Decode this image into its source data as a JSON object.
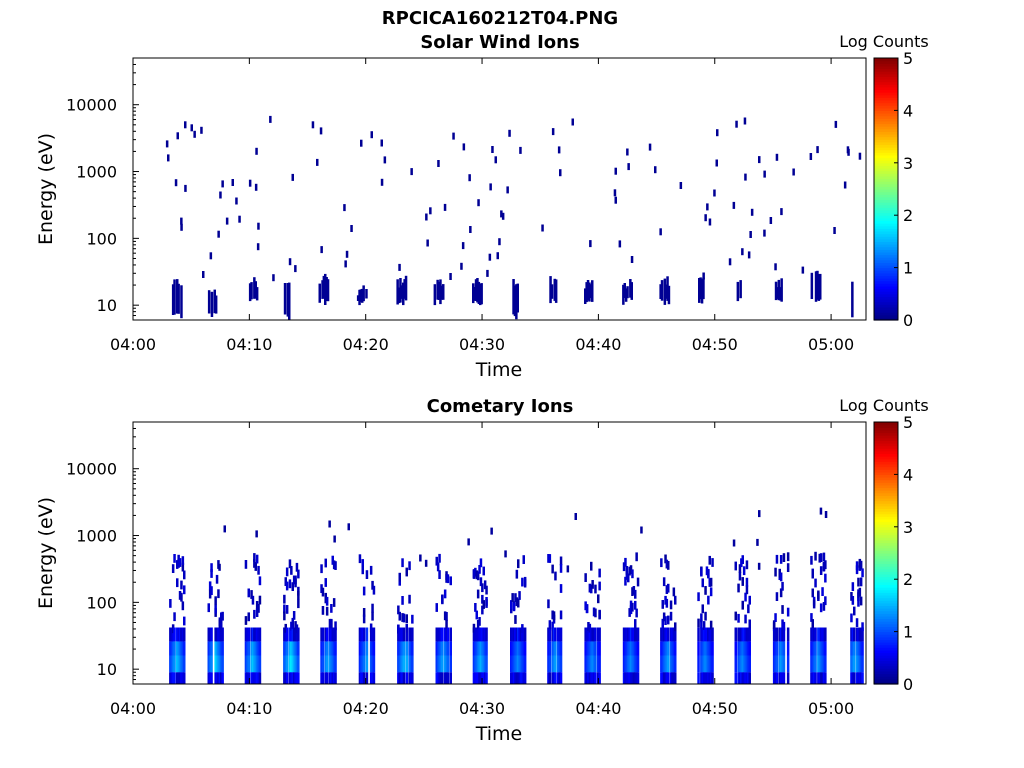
{
  "figure": {
    "title": "RPCICA160212T04.PNG"
  },
  "chart_data": [
    {
      "type": "heatmap",
      "title": "Solar Wind Ions",
      "xlabel": "Time",
      "ylabel": "Energy (eV)",
      "yscale": "log",
      "ylim": [
        6,
        50000
      ],
      "xlim": [
        "04:00",
        "05:03"
      ],
      "x_ticks": [
        "04:00",
        "04:10",
        "04:20",
        "04:30",
        "04:40",
        "04:50",
        "05:00"
      ],
      "y_ticks": [
        "10",
        "100",
        "1000",
        "10000"
      ],
      "colorbar": {
        "label": "Log Counts",
        "range": [
          0,
          5
        ],
        "ticks": [
          "0",
          "1",
          "2",
          "3",
          "4",
          "5"
        ],
        "colormap": "jet"
      },
      "grid": false,
      "description_of_values": "Sparse counts mostly at log count ~0-0.3 (dark blue); low-energy (~6-25 eV) bursts roughly every 3 minutes; scattered single detections 100-10000 eV.",
      "bursts_low_energy": [
        {
          "t": "04:03.7",
          "emin": 6,
          "emax": 25,
          "level": 0.1
        },
        {
          "t": "04:06.8",
          "emin": 6,
          "emax": 16,
          "level": 0.1
        },
        {
          "t": "04:10.2",
          "emin": 10,
          "emax": 25,
          "level": 0.1
        },
        {
          "t": "04:13.2",
          "emin": 6,
          "emax": 25,
          "level": 0.1
        },
        {
          "t": "04:16.3",
          "emin": 10,
          "emax": 30,
          "level": 0.1
        },
        {
          "t": "04:19.6",
          "emin": 10,
          "emax": 18,
          "level": 0.1
        },
        {
          "t": "04:23.0",
          "emin": 10,
          "emax": 25,
          "level": 0.1
        },
        {
          "t": "04:26.2",
          "emin": 10,
          "emax": 25,
          "level": 0.1
        },
        {
          "t": "04:29.5",
          "emin": 10,
          "emax": 25,
          "level": 0.1
        },
        {
          "t": "04:32.6",
          "emin": 6,
          "emax": 25,
          "level": 0.1
        },
        {
          "t": "04:35.9",
          "emin": 10,
          "emax": 25,
          "level": 0.1
        },
        {
          "t": "04:39.0",
          "emin": 10,
          "emax": 25,
          "level": 0.1
        },
        {
          "t": "04:42.4",
          "emin": 10,
          "emax": 25,
          "level": 0.1
        },
        {
          "t": "04:45.6",
          "emin": 10,
          "emax": 25,
          "level": 0.1
        },
        {
          "t": "04:48.8",
          "emin": 10,
          "emax": 25,
          "level": 0.1
        },
        {
          "t": "04:52.0",
          "emin": 10,
          "emax": 25,
          "level": 0.1
        },
        {
          "t": "04:55.4",
          "emin": 10,
          "emax": 25,
          "level": 0.1
        },
        {
          "t": "04:58.6",
          "emin": 10,
          "emax": 30,
          "level": 0.1
        },
        {
          "t": "05:01.6",
          "emin": 6,
          "emax": 25,
          "level": 0.1
        }
      ]
    },
    {
      "type": "heatmap",
      "title": "Cometary Ions",
      "xlabel": "Time",
      "ylabel": "Energy (eV)",
      "yscale": "log",
      "ylim": [
        6,
        50000
      ],
      "xlim": [
        "04:00",
        "05:03"
      ],
      "x_ticks": [
        "04:00",
        "04:10",
        "04:20",
        "04:30",
        "04:40",
        "04:50",
        "05:00"
      ],
      "y_ticks": [
        "10",
        "100",
        "1000",
        "10000"
      ],
      "colorbar": {
        "label": "Log Counts",
        "range": [
          0,
          5
        ],
        "ticks": [
          "0",
          "1",
          "2",
          "3",
          "4",
          "5"
        ],
        "colormap": "jet"
      },
      "grid": false,
      "description_of_values": "Periodic bursts every ~3.2 min; core 8-25 eV reaching log counts ~1.5-1.9 (cyan), tails to ~500 eV at log counts ~0.2, isolated points up to ~3000 eV.",
      "bursts": [
        {
          "t": "04:03.7",
          "core_level": 1.6
        },
        {
          "t": "04:07.0",
          "core_level": 1.7
        },
        {
          "t": "04:10.2",
          "core_level": 1.6
        },
        {
          "t": "04:13.5",
          "core_level": 1.8
        },
        {
          "t": "04:16.7",
          "core_level": 1.5
        },
        {
          "t": "04:20.0",
          "core_level": 1.4
        },
        {
          "t": "04:23.3",
          "core_level": 1.6
        },
        {
          "t": "04:26.6",
          "core_level": 1.5
        },
        {
          "t": "04:29.8",
          "core_level": 1.5
        },
        {
          "t": "04:33.0",
          "core_level": 1.3
        },
        {
          "t": "04:36.2",
          "core_level": 1.4
        },
        {
          "t": "04:39.4",
          "core_level": 1.3
        },
        {
          "t": "04:42.7",
          "core_level": 1.3
        },
        {
          "t": "04:45.9",
          "core_level": 1.4
        },
        {
          "t": "04:49.1",
          "core_level": 1.3
        },
        {
          "t": "04:52.3",
          "core_level": 1.3
        },
        {
          "t": "04:55.6",
          "core_level": 1.4
        },
        {
          "t": "04:58.8",
          "core_level": 1.4
        },
        {
          "t": "05:02.0",
          "core_level": 1.5
        }
      ]
    }
  ]
}
